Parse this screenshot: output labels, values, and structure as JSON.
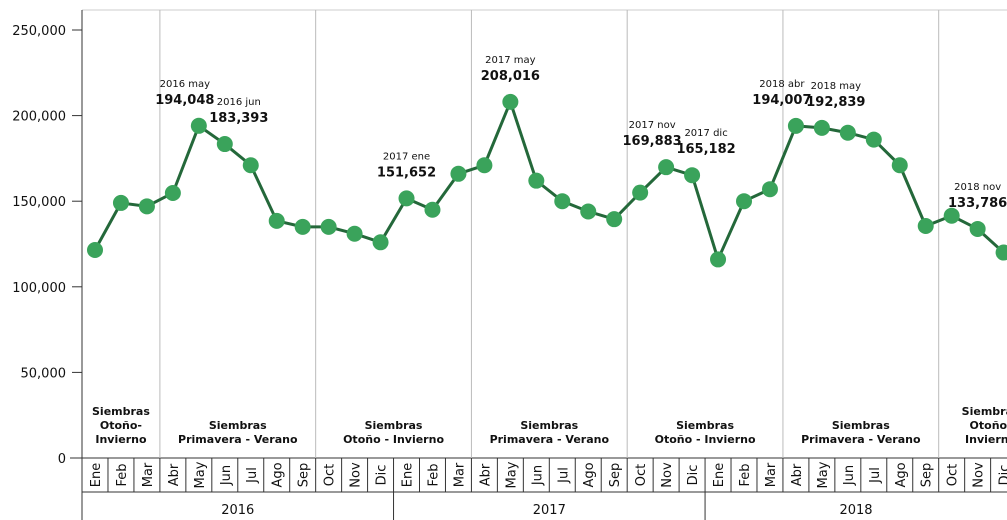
{
  "chart_data": {
    "type": "line",
    "categories": [
      "Ene",
      "Feb",
      "Mar",
      "Abr",
      "May",
      "Jun",
      "Jul",
      "Ago",
      "Sep",
      "Oct",
      "Nov",
      "Dic",
      "Ene",
      "Feb",
      "Mar",
      "Abr",
      "May",
      "Jun",
      "Jul",
      "Ago",
      "Sep",
      "Oct",
      "Nov",
      "Dic",
      "Ene",
      "Feb",
      "Mar",
      "Abr",
      "May",
      "Jun",
      "Jul",
      "Ago",
      "Sep",
      "Oct",
      "Nov",
      "Dic"
    ],
    "years": [
      "2016",
      "2017",
      "2018"
    ],
    "series": [
      {
        "color": "#3aa35b",
        "line_color": "#24683a",
        "values": [
          121500,
          149000,
          147000,
          154800,
          194048,
          183393,
          171000,
          138500,
          135000,
          135000,
          131000,
          126000,
          151652,
          145000,
          166000,
          171000,
          208016,
          162000,
          150000,
          144000,
          139500,
          155000,
          169883,
          165182,
          116000,
          150000,
          157000,
          194007,
          192839,
          190000,
          186000,
          171000,
          135500,
          141500,
          133786,
          120000
        ],
        "value_labels": [
          null,
          null,
          null,
          null,
          "194,048",
          "183,393",
          null,
          null,
          null,
          null,
          null,
          null,
          "151,652",
          null,
          null,
          null,
          "208,016",
          null,
          null,
          null,
          null,
          null,
          "169,883",
          "165,182",
          null,
          null,
          null,
          "194,007",
          "192,839",
          null,
          null,
          null,
          null,
          null,
          "133,786",
          null
        ],
        "period_labels": [
          null,
          null,
          null,
          null,
          "2016 may",
          "2016 jun",
          null,
          null,
          null,
          null,
          null,
          null,
          "2017 ene",
          null,
          null,
          null,
          "2017 may",
          null,
          null,
          null,
          null,
          null,
          "2017 nov",
          "2017 dic",
          null,
          null,
          null,
          "2018 abr",
          "2018 may",
          null,
          null,
          null,
          null,
          null,
          "2018 nov",
          null
        ]
      }
    ],
    "seasons": [
      [
        "Siembras",
        "Otoño-",
        "Invierno"
      ],
      [
        "Siembras",
        "Primavera - Verano"
      ],
      [
        "Siembras",
        "Otoño - Invierno"
      ],
      [
        "Siembras",
        "Primavera - Verano"
      ],
      [
        "Siembras",
        "Otoño - Invierno"
      ],
      [
        "Siembras",
        "Primavera - Verano"
      ],
      [
        "Siembras",
        "Otoño-",
        "Invierno"
      ]
    ],
    "ylim": [
      0,
      250000
    ],
    "yticks": [
      0,
      {
        "value": 50000,
        "label": "50,000"
      },
      {
        "value": 100000,
        "label": "100,000"
      },
      {
        "value": 150000,
        "label": "150,000"
      },
      {
        "value": 200000,
        "label": "200,000"
      },
      {
        "value": 250000,
        "label": "250,000"
      }
    ]
  }
}
